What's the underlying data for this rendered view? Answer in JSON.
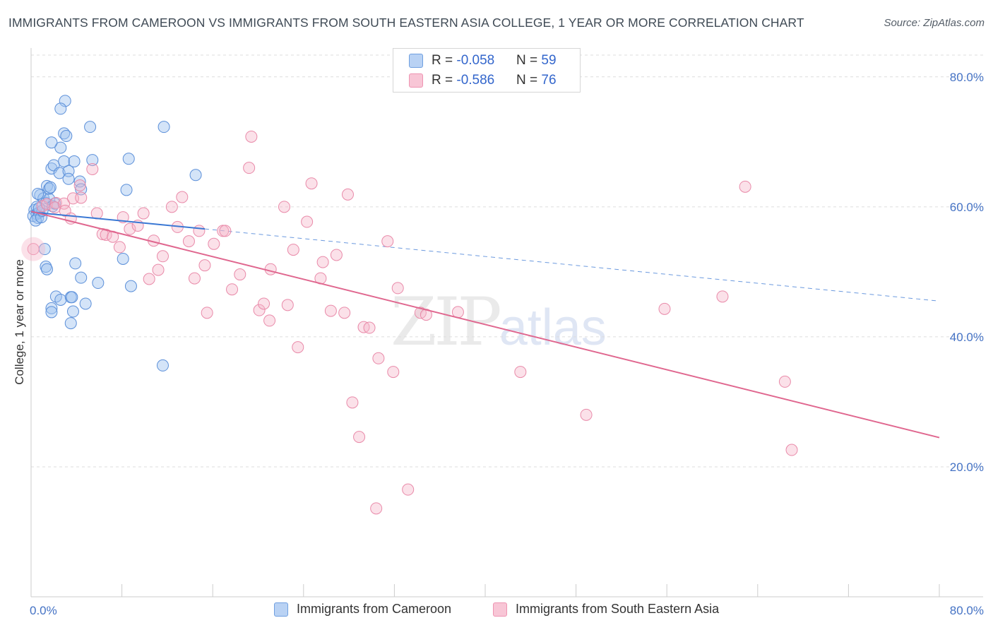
{
  "title": "IMMIGRANTS FROM CAMEROON VS IMMIGRANTS FROM SOUTH EASTERN ASIA COLLEGE, 1 YEAR OR MORE CORRELATION CHART",
  "source": "Source: ZipAtlas.com",
  "watermark": {
    "zip": "ZIP",
    "atlas": "atlas"
  },
  "legend_top": [
    {
      "r_label": "R = ",
      "r_value": "-0.058",
      "n_label": "N = ",
      "n_value": "59",
      "fill": "#b9d2f4",
      "stroke": "#6f9fe0"
    },
    {
      "r_label": "R = ",
      "r_value": "-0.586",
      "n_label": "N = ",
      "n_value": "76",
      "fill": "#f8c6d6",
      "stroke": "#ee94b2"
    }
  ],
  "legend_bottom": [
    "Immigrants from Cameroon",
    "Immigrants from South Eastern Asia"
  ],
  "colors": {
    "blue_fill": "rgba(160,195,240,0.45)",
    "blue_stroke": "#5b8fd9",
    "blue_line": "#3a78d4",
    "pink_fill": "rgba(244,180,200,0.40)",
    "pink_stroke": "#e98aa9",
    "pink_line": "#e0678f",
    "grid": "#dddddd",
    "tick_label": "#4472c4"
  },
  "chart_data": {
    "type": "scatter",
    "title": "IMMIGRANTS FROM CAMEROON VS IMMIGRANTS FROM SOUTH EASTERN ASIA COLLEGE, 1 YEAR OR MORE CORRELATION CHART",
    "xlabel": "",
    "ylabel": "College, 1 year or more",
    "xlim": [
      0,
      80
    ],
    "ylim": [
      0,
      84
    ],
    "x_tick_labels": [
      {
        "value": 0,
        "label": "0.0%"
      },
      {
        "value": 80,
        "label": "80.0%"
      }
    ],
    "y_ticks": [
      {
        "value": 20,
        "label": "20.0%"
      },
      {
        "value": 40,
        "label": "40.0%"
      },
      {
        "value": 60,
        "label": "60.0%"
      },
      {
        "value": 80,
        "label": "80.0%"
      }
    ],
    "grid": true,
    "legend_position": "bottom",
    "series": [
      {
        "name": "Immigrants from Cameroon",
        "color": "blue",
        "r": -0.058,
        "n": 59,
        "trend": {
          "x": [
            0,
            15.3
          ],
          "y": [
            59.2,
            56.6
          ],
          "extended_to": [
            80,
            45.5
          ]
        },
        "points": [
          [
            0.3,
            59.5
          ],
          [
            0.5,
            58.9
          ],
          [
            0.2,
            58.6
          ],
          [
            0.7,
            59.1
          ],
          [
            0.6,
            58.3
          ],
          [
            0.4,
            57.9
          ],
          [
            0.9,
            58.4
          ],
          [
            0.5,
            60.0
          ],
          [
            0.8,
            61.8
          ],
          [
            1.1,
            61.3
          ],
          [
            0.6,
            62.0
          ],
          [
            1.3,
            60.6
          ],
          [
            1.6,
            61.2
          ],
          [
            1.9,
            60.1
          ],
          [
            2.1,
            60.5
          ],
          [
            1.0,
            59.4
          ],
          [
            0.7,
            59.8
          ],
          [
            1.4,
            63.2
          ],
          [
            1.6,
            62.8
          ],
          [
            1.7,
            63.0
          ],
          [
            1.8,
            65.9
          ],
          [
            2.0,
            66.4
          ],
          [
            2.5,
            65.2
          ],
          [
            3.3,
            65.5
          ],
          [
            3.3,
            64.3
          ],
          [
            4.3,
            63.9
          ],
          [
            4.4,
            62.7
          ],
          [
            2.6,
            69.1
          ],
          [
            1.8,
            69.9
          ],
          [
            2.9,
            71.3
          ],
          [
            3.1,
            70.9
          ],
          [
            2.9,
            67.0
          ],
          [
            3.8,
            67.0
          ],
          [
            5.4,
            67.2
          ],
          [
            5.2,
            72.3
          ],
          [
            3.0,
            76.3
          ],
          [
            2.6,
            75.1
          ],
          [
            8.6,
            67.4
          ],
          [
            8.4,
            62.6
          ],
          [
            11.7,
            72.3
          ],
          [
            14.5,
            64.9
          ],
          [
            1.2,
            53.5
          ],
          [
            1.3,
            50.8
          ],
          [
            1.4,
            50.4
          ],
          [
            3.9,
            51.3
          ],
          [
            4.4,
            49.1
          ],
          [
            5.9,
            48.3
          ],
          [
            8.1,
            52.0
          ],
          [
            8.8,
            47.8
          ],
          [
            2.2,
            46.2
          ],
          [
            2.6,
            45.7
          ],
          [
            1.8,
            44.4
          ],
          [
            1.8,
            43.8
          ],
          [
            3.5,
            46.1
          ],
          [
            3.6,
            46.1
          ],
          [
            4.8,
            45.1
          ],
          [
            3.7,
            43.9
          ],
          [
            3.5,
            42.1
          ],
          [
            11.6,
            35.6
          ]
        ]
      },
      {
        "name": "Immigrants from South Eastern Asia",
        "color": "pink",
        "r": -0.586,
        "n": 76,
        "trend": {
          "x": [
            0,
            80
          ],
          "y": [
            59.3,
            24.5
          ]
        },
        "points": [
          [
            0.2,
            53.5
          ],
          [
            1.0,
            60.1
          ],
          [
            1.4,
            60.4
          ],
          [
            2.2,
            60.6
          ],
          [
            2.1,
            59.9
          ],
          [
            2.9,
            60.5
          ],
          [
            3.0,
            59.4
          ],
          [
            3.5,
            58.2
          ],
          [
            3.7,
            61.3
          ],
          [
            4.3,
            63.3
          ],
          [
            5.4,
            65.8
          ],
          [
            4.4,
            61.4
          ],
          [
            5.8,
            59.0
          ],
          [
            6.3,
            55.8
          ],
          [
            6.6,
            55.7
          ],
          [
            7.2,
            55.4
          ],
          [
            7.8,
            53.8
          ],
          [
            8.1,
            58.4
          ],
          [
            8.7,
            56.6
          ],
          [
            9.4,
            57.1
          ],
          [
            9.9,
            59.0
          ],
          [
            10.4,
            48.9
          ],
          [
            10.8,
            54.8
          ],
          [
            11.2,
            50.3
          ],
          [
            11.6,
            52.4
          ],
          [
            12.4,
            60.0
          ],
          [
            12.9,
            56.9
          ],
          [
            13.3,
            61.5
          ],
          [
            13.9,
            54.7
          ],
          [
            14.4,
            49.0
          ],
          [
            14.8,
            56.3
          ],
          [
            15.3,
            51.0
          ],
          [
            15.5,
            43.7
          ],
          [
            16.1,
            54.3
          ],
          [
            16.9,
            56.3
          ],
          [
            17.1,
            56.3
          ],
          [
            17.7,
            47.3
          ],
          [
            18.4,
            49.6
          ],
          [
            19.2,
            66.0
          ],
          [
            19.4,
            70.8
          ],
          [
            20.1,
            44.1
          ],
          [
            20.5,
            45.1
          ],
          [
            21.0,
            42.5
          ],
          [
            21.1,
            50.4
          ],
          [
            22.3,
            60.0
          ],
          [
            22.6,
            44.9
          ],
          [
            23.1,
            53.4
          ],
          [
            23.5,
            38.4
          ],
          [
            24.3,
            57.7
          ],
          [
            24.7,
            63.6
          ],
          [
            25.5,
            49.0
          ],
          [
            25.7,
            51.5
          ],
          [
            26.4,
            44.0
          ],
          [
            26.9,
            52.6
          ],
          [
            27.6,
            43.7
          ],
          [
            27.9,
            61.9
          ],
          [
            28.3,
            29.9
          ],
          [
            28.9,
            24.6
          ],
          [
            29.3,
            41.5
          ],
          [
            29.8,
            41.4
          ],
          [
            30.4,
            13.6
          ],
          [
            30.6,
            36.7
          ],
          [
            31.4,
            54.7
          ],
          [
            31.9,
            34.6
          ],
          [
            32.3,
            47.5
          ],
          [
            33.2,
            16.5
          ],
          [
            34.3,
            43.7
          ],
          [
            34.8,
            43.4
          ],
          [
            37.6,
            43.8
          ],
          [
            43.1,
            34.6
          ],
          [
            48.9,
            28.0
          ],
          [
            55.8,
            44.3
          ],
          [
            60.9,
            46.2
          ],
          [
            62.9,
            63.1
          ],
          [
            66.4,
            33.1
          ],
          [
            67.0,
            22.6
          ]
        ]
      }
    ]
  }
}
